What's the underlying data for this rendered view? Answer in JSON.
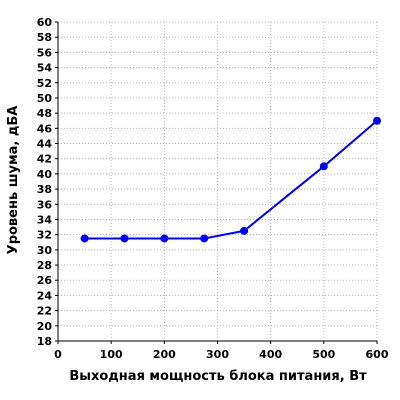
{
  "chart_data": {
    "type": "line",
    "title": "",
    "xlabel": "Выходная мощность блока питания, Вт",
    "ylabel": "Уровень шума, дБА",
    "xlim": [
      0,
      600
    ],
    "ylim": [
      18,
      60
    ],
    "x_ticks": [
      0,
      100,
      200,
      300,
      400,
      500,
      600
    ],
    "y_ticks": [
      18,
      20,
      22,
      24,
      26,
      28,
      30,
      32,
      34,
      36,
      38,
      40,
      42,
      44,
      46,
      48,
      50,
      52,
      54,
      56,
      58,
      60
    ],
    "grid": true,
    "legend": "none",
    "series": [
      {
        "color": "#0000ee",
        "x": [
          50,
          125,
          200,
          275,
          350,
          500,
          600
        ],
        "y": [
          31.5,
          31.5,
          31.5,
          31.5,
          32.5,
          41,
          47
        ]
      }
    ]
  }
}
